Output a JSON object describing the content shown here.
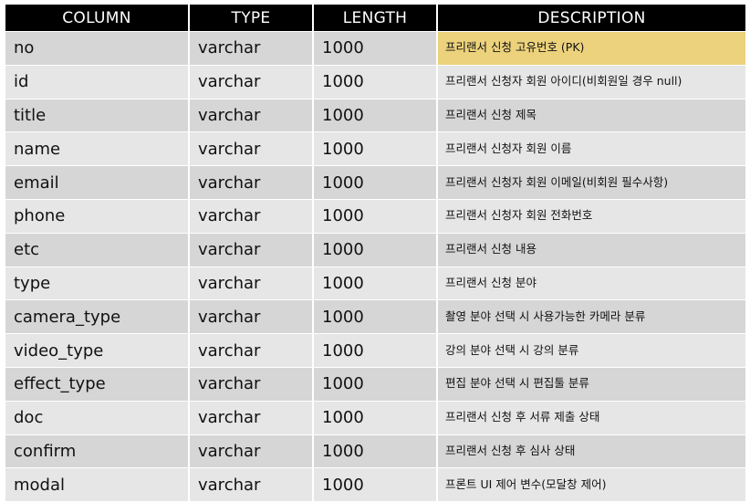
{
  "headers": {
    "column": "COLUMN",
    "type": "TYPE",
    "length": "LENGTH",
    "description": "DESCRIPTION"
  },
  "highlight_color": "#ecd27c",
  "rows": [
    {
      "column": "no",
      "type": "varchar",
      "length": "1000",
      "description": "프리랜서 신청 고유번호 (PK)",
      "highlighted": true
    },
    {
      "column": "id",
      "type": "varchar",
      "length": "1000",
      "description": "프리랜서 신청자 회원 아이디(비회원일 경우 null)"
    },
    {
      "column": "title",
      "type": "varchar",
      "length": "1000",
      "description": "프리랜서 신청 제목"
    },
    {
      "column": "name",
      "type": "varchar",
      "length": "1000",
      "description": "프리랜서 신청자 회원 이름"
    },
    {
      "column": "email",
      "type": "varchar",
      "length": "1000",
      "description": "프리랜서 신청자 회원 이메일(비회원 필수사항)"
    },
    {
      "column": "phone",
      "type": "varchar",
      "length": "1000",
      "description": "프리랜서 신청자 회원 전화번호"
    },
    {
      "column": "etc",
      "type": "varchar",
      "length": "1000",
      "description": "프리랜서 신청 내용"
    },
    {
      "column": "type",
      "type": "varchar",
      "length": "1000",
      "description": "프리랜서 신청 분야"
    },
    {
      "column": "camera_type",
      "type": "varchar",
      "length": "1000",
      "description": "촬영 분야 선택 시 사용가능한 카메라 분류"
    },
    {
      "column": "video_type",
      "type": "varchar",
      "length": "1000",
      "description": "강의 분야 선택 시 강의 분류"
    },
    {
      "column": "effect_type",
      "type": "varchar",
      "length": "1000",
      "description": "편집 분야 선택 시 편집툴 분류"
    },
    {
      "column": "doc",
      "type": "varchar",
      "length": "1000",
      "description": "프리랜서 신청 후 서류 제출 상태"
    },
    {
      "column": "confirm",
      "type": "varchar",
      "length": "1000",
      "description": "프리랜서 신청 후 심사 상태"
    },
    {
      "column": "modal",
      "type": "varchar",
      "length": "1000",
      "description": "프론트 UI 제어 변수(모달창 제어)"
    }
  ]
}
